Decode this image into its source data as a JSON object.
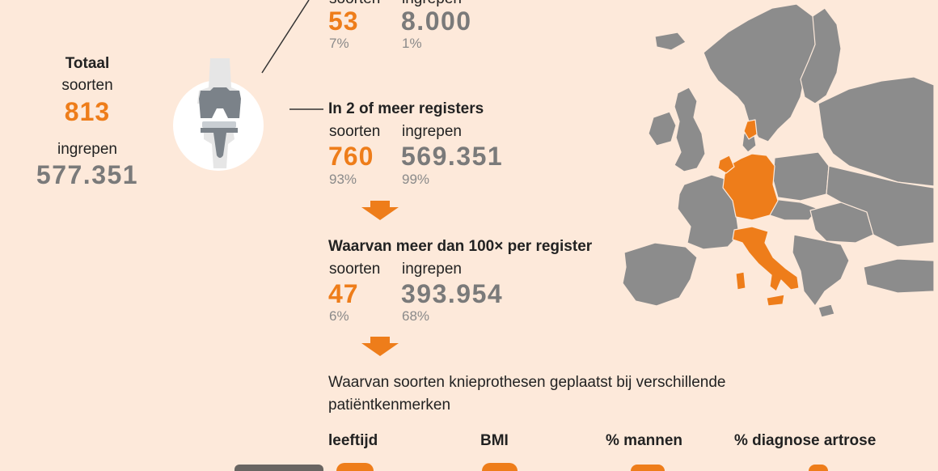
{
  "totaal": {
    "heading": "Totaal",
    "soorten_label": "soorten",
    "soorten_value": "813",
    "ingrepen_label": "ingrepen",
    "ingrepen_value": "577.351"
  },
  "top_block": {
    "soorten_label": "soorten",
    "ingrepen_label": "ingrepen",
    "soorten_value": "53",
    "soorten_pct": "7%",
    "ingrepen_value": "8.000",
    "ingrepen_pct": "1%"
  },
  "meer_registers": {
    "heading": "In 2 of meer registers",
    "soorten_label": "soorten",
    "ingrepen_label": "ingrepen",
    "soorten_value": "760",
    "soorten_pct": "93%",
    "ingrepen_value": "569.351",
    "ingrepen_pct": "99%"
  },
  "meer_dan_100": {
    "heading": "Waarvan meer dan 100× per register",
    "soorten_label": "soorten",
    "ingrepen_label": "ingrepen",
    "soorten_value": "47",
    "soorten_pct": "6%",
    "ingrepen_value": "393.954",
    "ingrepen_pct": "68%"
  },
  "kenmerken": {
    "heading_line1": "Waarvan soorten knieprothesen geplaatst bij verschillende",
    "heading_line2": "patiëntkenmerken",
    "columns": [
      "leeftijd",
      "BMI",
      "% mannen",
      "% diagnose artrose"
    ]
  },
  "colors": {
    "background": "#fde9da",
    "accent": "#ee7d1a",
    "gray_value": "#7a7a7a",
    "map_gray": "#8c8c8c"
  },
  "icons": [
    "knee-prosthesis-icon",
    "arrow-down-icon",
    "europe-map"
  ]
}
